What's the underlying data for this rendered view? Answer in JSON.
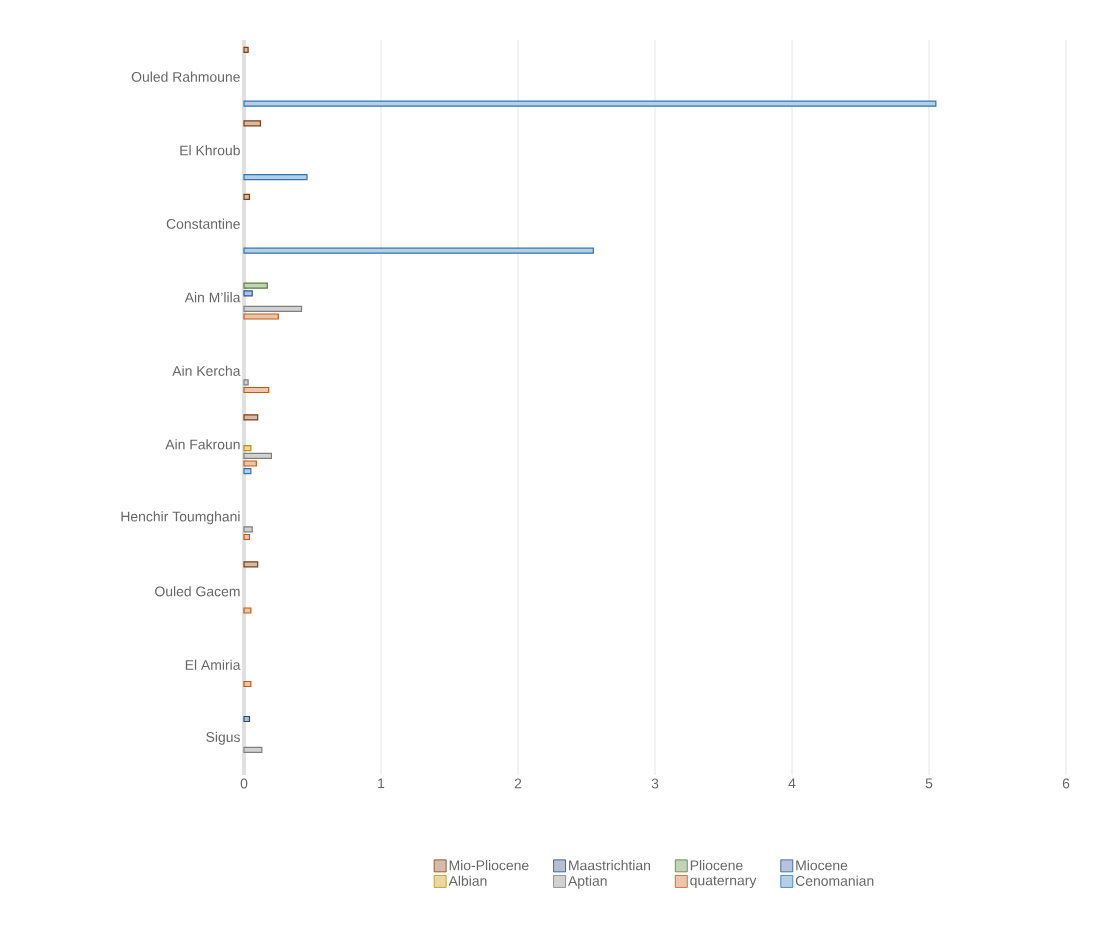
{
  "chart_data": {
    "type": "bar",
    "orientation": "horizontal",
    "categories": [
      "Ouled Rahmoune",
      "El Khroub",
      "Constantine",
      "Ain M’lila",
      "Ain Kercha",
      "Ain Fakroun",
      "Henchir Toumghani",
      "Ouled Gacem",
      "El Amiria",
      "Sigus"
    ],
    "series": [
      {
        "name": "Mio-Pliocene",
        "color": "#843c0c",
        "values": [
          0.03,
          0.12,
          0.04,
          null,
          null,
          0.1,
          null,
          0.1,
          null,
          null
        ]
      },
      {
        "name": "Maastrichtian",
        "color": "#1f4e79",
        "values": [
          null,
          null,
          null,
          null,
          null,
          null,
          null,
          null,
          null,
          0.04
        ]
      },
      {
        "name": "Pliocene",
        "color": "#548235",
        "values": [
          null,
          null,
          null,
          0.17,
          null,
          null,
          null,
          null,
          null,
          null
        ]
      },
      {
        "name": "Miocene",
        "color": "#2f5597",
        "values": [
          null,
          null,
          null,
          0.06,
          null,
          null,
          null,
          null,
          null,
          null
        ]
      },
      {
        "name": "Albian",
        "color": "#bf9000",
        "values": [
          null,
          null,
          null,
          null,
          null,
          0.05,
          null,
          null,
          null,
          null
        ]
      },
      {
        "name": "Aptian",
        "color": "#7f7f7f",
        "values": [
          null,
          null,
          null,
          0.42,
          0.03,
          0.2,
          0.06,
          null,
          null,
          0.13
        ]
      },
      {
        "name": "quaternary",
        "color": "#c55a11",
        "values": [
          null,
          null,
          null,
          0.25,
          0.18,
          0.09,
          0.04,
          0.05,
          0.05,
          null
        ]
      },
      {
        "name": "Cenomanian",
        "color": "#2e75b6",
        "values": [
          5.05,
          0.46,
          2.55,
          null,
          null,
          0.05,
          null,
          null,
          null,
          null
        ]
      }
    ],
    "xlim": [
      0,
      6
    ],
    "xticks": [
      0,
      1,
      2,
      3,
      4,
      5,
      6
    ],
    "grid": "x",
    "legend": "bottom"
  }
}
